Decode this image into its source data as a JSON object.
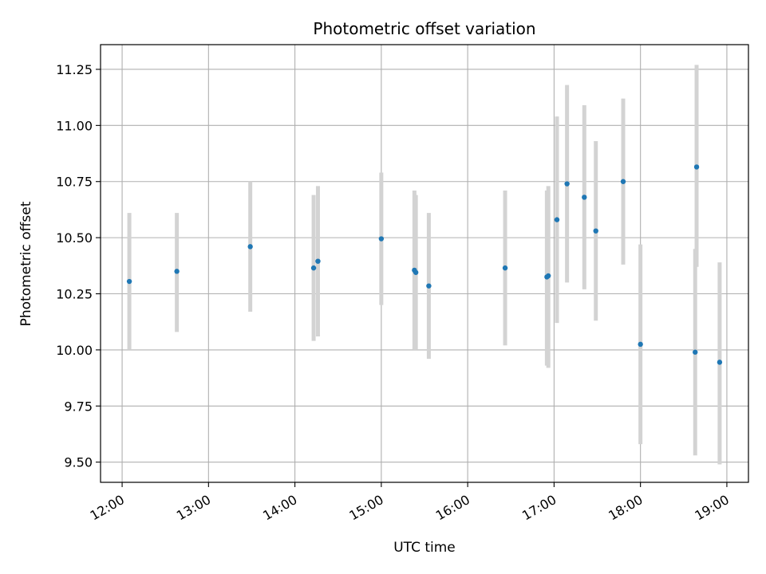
{
  "chart_data": {
    "type": "scatter",
    "title": "Photometric offset variation",
    "xlabel": "UTC time",
    "ylabel": "Photometric offset",
    "x_ticks": [
      "12:00",
      "13:00",
      "14:00",
      "15:00",
      "16:00",
      "17:00",
      "18:00",
      "19:00"
    ],
    "y_ticks": [
      "9.50",
      "9.75",
      "10.00",
      "10.25",
      "10.50",
      "10.75",
      "11.00",
      "11.25"
    ],
    "xlim": [
      "11:45",
      "19:15"
    ],
    "ylim": [
      9.41,
      11.36
    ],
    "grid": true,
    "colors": {
      "point": "#1f77b4",
      "errorbar": "#d3d3d3",
      "grid": "#b0b0b0"
    },
    "points": [
      {
        "x": "12:05",
        "y": 10.305,
        "ylow": 10.0,
        "yhigh": 10.61
      },
      {
        "x": "12:38",
        "y": 10.35,
        "ylow": 10.08,
        "yhigh": 10.61
      },
      {
        "x": "13:29",
        "y": 10.46,
        "ylow": 10.17,
        "yhigh": 10.75
      },
      {
        "x": "14:13",
        "y": 10.365,
        "ylow": 10.04,
        "yhigh": 10.69
      },
      {
        "x": "14:16",
        "y": 10.395,
        "ylow": 10.06,
        "yhigh": 10.73
      },
      {
        "x": "15:00",
        "y": 10.495,
        "ylow": 10.2,
        "yhigh": 10.79
      },
      {
        "x": "15:23",
        "y": 10.355,
        "ylow": 10.0,
        "yhigh": 10.71
      },
      {
        "x": "15:24",
        "y": 10.345,
        "ylow": 10.0,
        "yhigh": 10.69
      },
      {
        "x": "15:33",
        "y": 10.285,
        "ylow": 9.96,
        "yhigh": 10.61
      },
      {
        "x": "16:26",
        "y": 10.365,
        "ylow": 10.02,
        "yhigh": 10.71
      },
      {
        "x": "16:55",
        "y": 10.325,
        "ylow": 9.93,
        "yhigh": 10.71
      },
      {
        "x": "16:56",
        "y": 10.33,
        "ylow": 9.92,
        "yhigh": 10.73
      },
      {
        "x": "17:02",
        "y": 10.58,
        "ylow": 10.12,
        "yhigh": 11.04
      },
      {
        "x": "17:09",
        "y": 10.74,
        "ylow": 10.3,
        "yhigh": 11.18
      },
      {
        "x": "17:21",
        "y": 10.68,
        "ylow": 10.27,
        "yhigh": 11.09
      },
      {
        "x": "17:29",
        "y": 10.53,
        "ylow": 10.13,
        "yhigh": 10.93
      },
      {
        "x": "17:48",
        "y": 10.75,
        "ylow": 10.38,
        "yhigh": 11.12
      },
      {
        "x": "18:00",
        "y": 10.025,
        "ylow": 9.58,
        "yhigh": 10.47
      },
      {
        "x": "18:38",
        "y": 9.99,
        "ylow": 9.53,
        "yhigh": 10.45
      },
      {
        "x": "18:39",
        "y": 10.815,
        "ylow": 10.37,
        "yhigh": 11.27
      },
      {
        "x": "18:55",
        "y": 9.945,
        "ylow": 9.49,
        "yhigh": 10.39
      }
    ]
  }
}
